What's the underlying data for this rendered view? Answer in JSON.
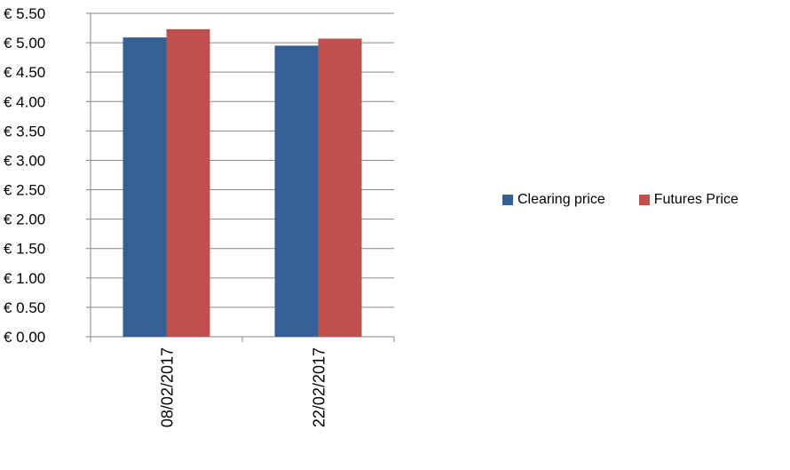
{
  "chart_data": {
    "type": "bar",
    "categories": [
      "08/02/2017",
      "22/02/2017"
    ],
    "series": [
      {
        "name": "Clearing price",
        "color": "#365f95",
        "values": [
          5.09,
          4.95
        ]
      },
      {
        "name": "Futures Price",
        "color": "#c0504d",
        "values": [
          5.23,
          5.07
        ]
      }
    ],
    "yticks": [
      "€ 0.00",
      "€ 0.50",
      "€ 1.00",
      "€ 1.50",
      "€ 2.00",
      "€ 2.50",
      "€ 3.00",
      "€ 3.50",
      "€ 4.00",
      "€ 4.50",
      "€ 5.00",
      "€ 5.50"
    ],
    "ylim": [
      0,
      5.5
    ],
    "ystep": 0.5,
    "grid": true,
    "legend_position": "right",
    "title": "",
    "xlabel": "",
    "ylabel": ""
  }
}
